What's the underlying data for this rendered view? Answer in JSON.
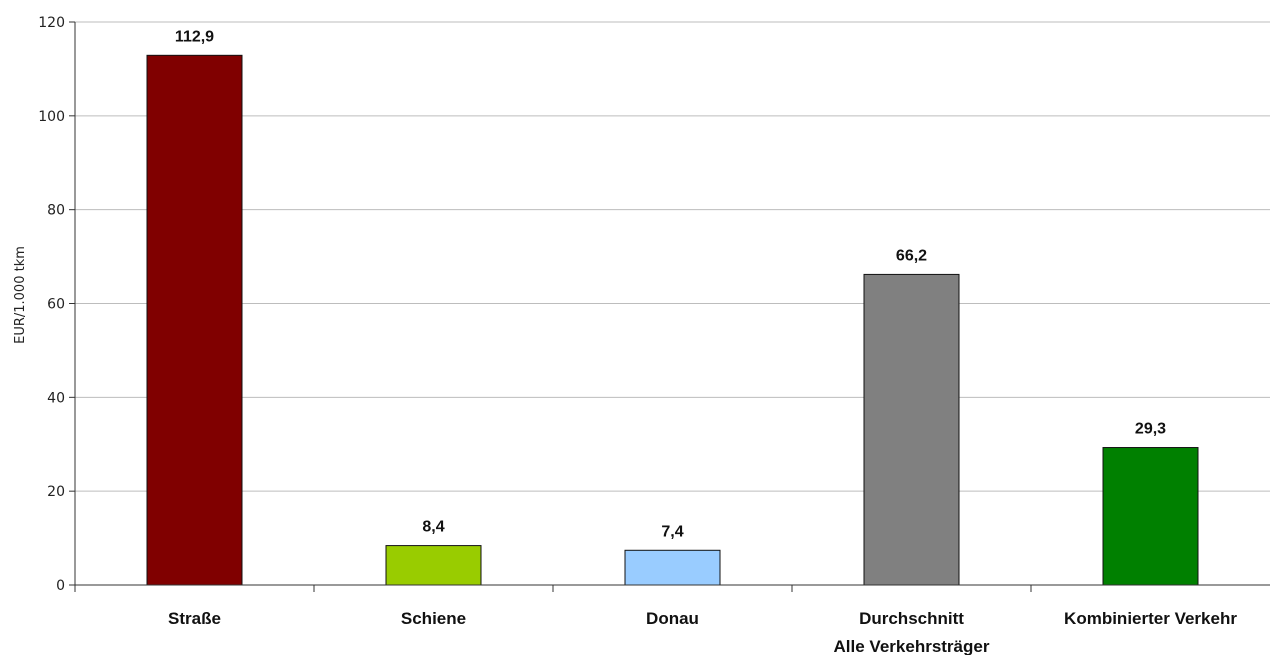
{
  "chart_data": {
    "type": "bar",
    "categories": [
      [
        "Straße"
      ],
      [
        "Schiene"
      ],
      [
        "Donau"
      ],
      [
        "Durchschnitt",
        "Alle Verkehrsträger"
      ],
      [
        "Kombinierter Verkehr"
      ]
    ],
    "values": [
      112.9,
      8.4,
      7.4,
      66.2,
      29.3
    ],
    "data_labels": [
      "112,9",
      "8,4",
      "7,4",
      "66,2",
      "29,3"
    ],
    "colors": [
      "#800000",
      "#99cc00",
      "#99ccff",
      "#808080",
      "#008000"
    ],
    "ylabel": "EUR/1.000 tkm",
    "ylim": [
      0,
      120
    ],
    "yticks": [
      0,
      20,
      40,
      60,
      80,
      100,
      120
    ],
    "grid": true,
    "legend": "none"
  }
}
